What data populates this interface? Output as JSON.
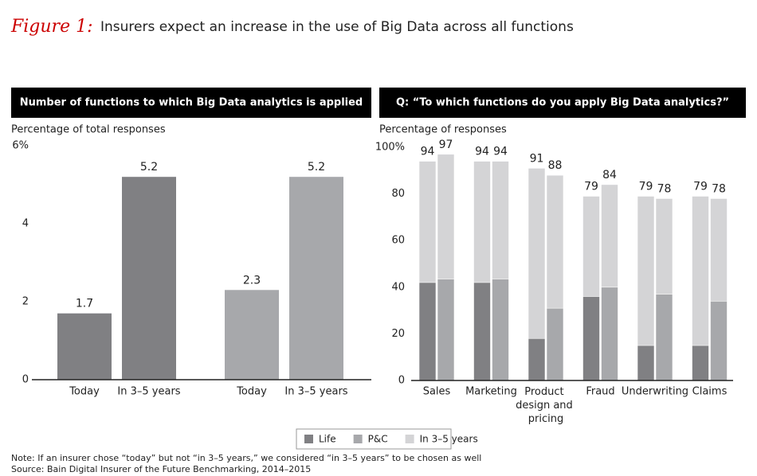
{
  "title_prefix": "Figure 1:",
  "title": "Insurers expect an increase in the use of Big Data across all functions",
  "notes": [
    "Note: If an insurer chose “today” but not “in 3–5 years,” we considered “in 3–5 years” to be chosen as well",
    "Source: Bain Digital Insurer of the Future Benchmarking, 2014–2015"
  ],
  "chart_data": [
    {
      "type": "bar",
      "title": "Number of functions to which Big Data analytics is applied",
      "y_label": "Percentage of total responses",
      "categories": [
        "Today",
        "In 3–5 years",
        "Today",
        "In 3–5 years"
      ],
      "values": [
        1.7,
        5.2,
        2.3,
        5.2
      ],
      "colors": [
        "#808083",
        "#808083",
        "#a7a8ab",
        "#a7a8ab"
      ],
      "ylim": [
        0,
        6
      ],
      "yticks": [
        0,
        2,
        4,
        {
          "value": 6,
          "label": "6%"
        }
      ]
    },
    {
      "type": "stacked_pair",
      "title": "Q: “To which functions do you apply Big Data analytics?”",
      "y_label": "Percentage of responses",
      "categories": [
        "Sales",
        "Marketing",
        "Product design and pricing",
        "Fraud",
        "Underwriting",
        "Claims"
      ],
      "series": [
        {
          "name": "Life",
          "color": "#808083",
          "values": [
            42,
            42,
            18,
            36,
            15,
            15
          ]
        },
        {
          "name": "P&C",
          "color": "#a7a8ab",
          "values": [
            43.5,
            43.5,
            31,
            40,
            37,
            34
          ]
        },
        {
          "name": "In 3–5 years",
          "color": "#d4d4d6",
          "life_values": [
            94,
            94,
            91,
            79,
            79,
            79
          ],
          "pc_values": [
            97,
            94,
            88,
            84,
            78,
            78
          ]
        }
      ],
      "ylim": [
        0,
        100
      ],
      "yticks": [
        0,
        20,
        40,
        60,
        80,
        {
          "value": 100,
          "label": "100%"
        }
      ],
      "legend": "bottom"
    }
  ]
}
